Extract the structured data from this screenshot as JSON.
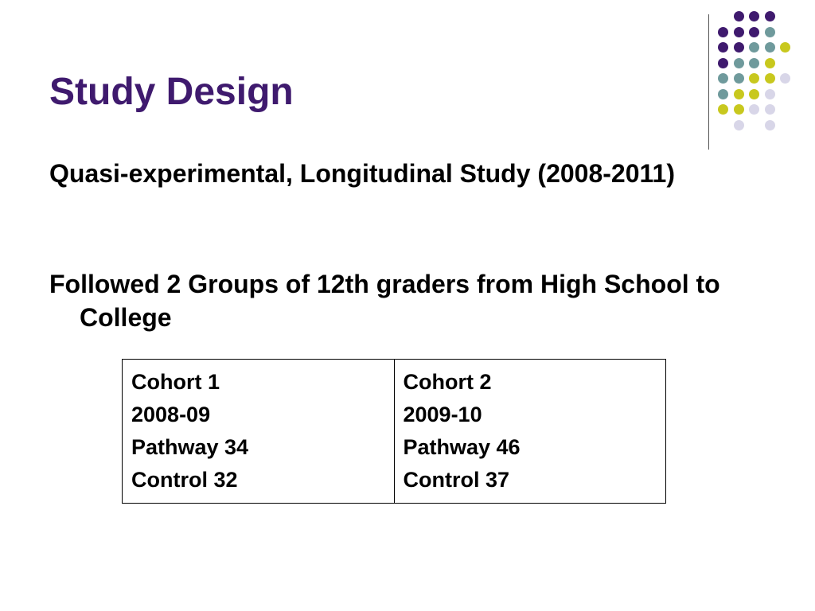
{
  "slide": {
    "title": "Study Design",
    "bullets": [
      "Quasi-experimental, Longitudinal Study (2008-2011)",
      "Followed 2 Groups of 12th graders from High School to College"
    ]
  },
  "table": {
    "cells": [
      [
        "Cohort 1",
        "2008-09",
        "Pathway 34",
        "Control 32"
      ],
      [
        "Cohort 2",
        "2009-10",
        "Pathway 46",
        "Control 37"
      ]
    ]
  },
  "colors": {
    "title": "#3f1a6e",
    "dot_purple": "#3f1a6e",
    "dot_teal": "#6f9a9c",
    "dot_yellow": "#c8c81e",
    "dot_lavender": "#d8d6e8"
  }
}
